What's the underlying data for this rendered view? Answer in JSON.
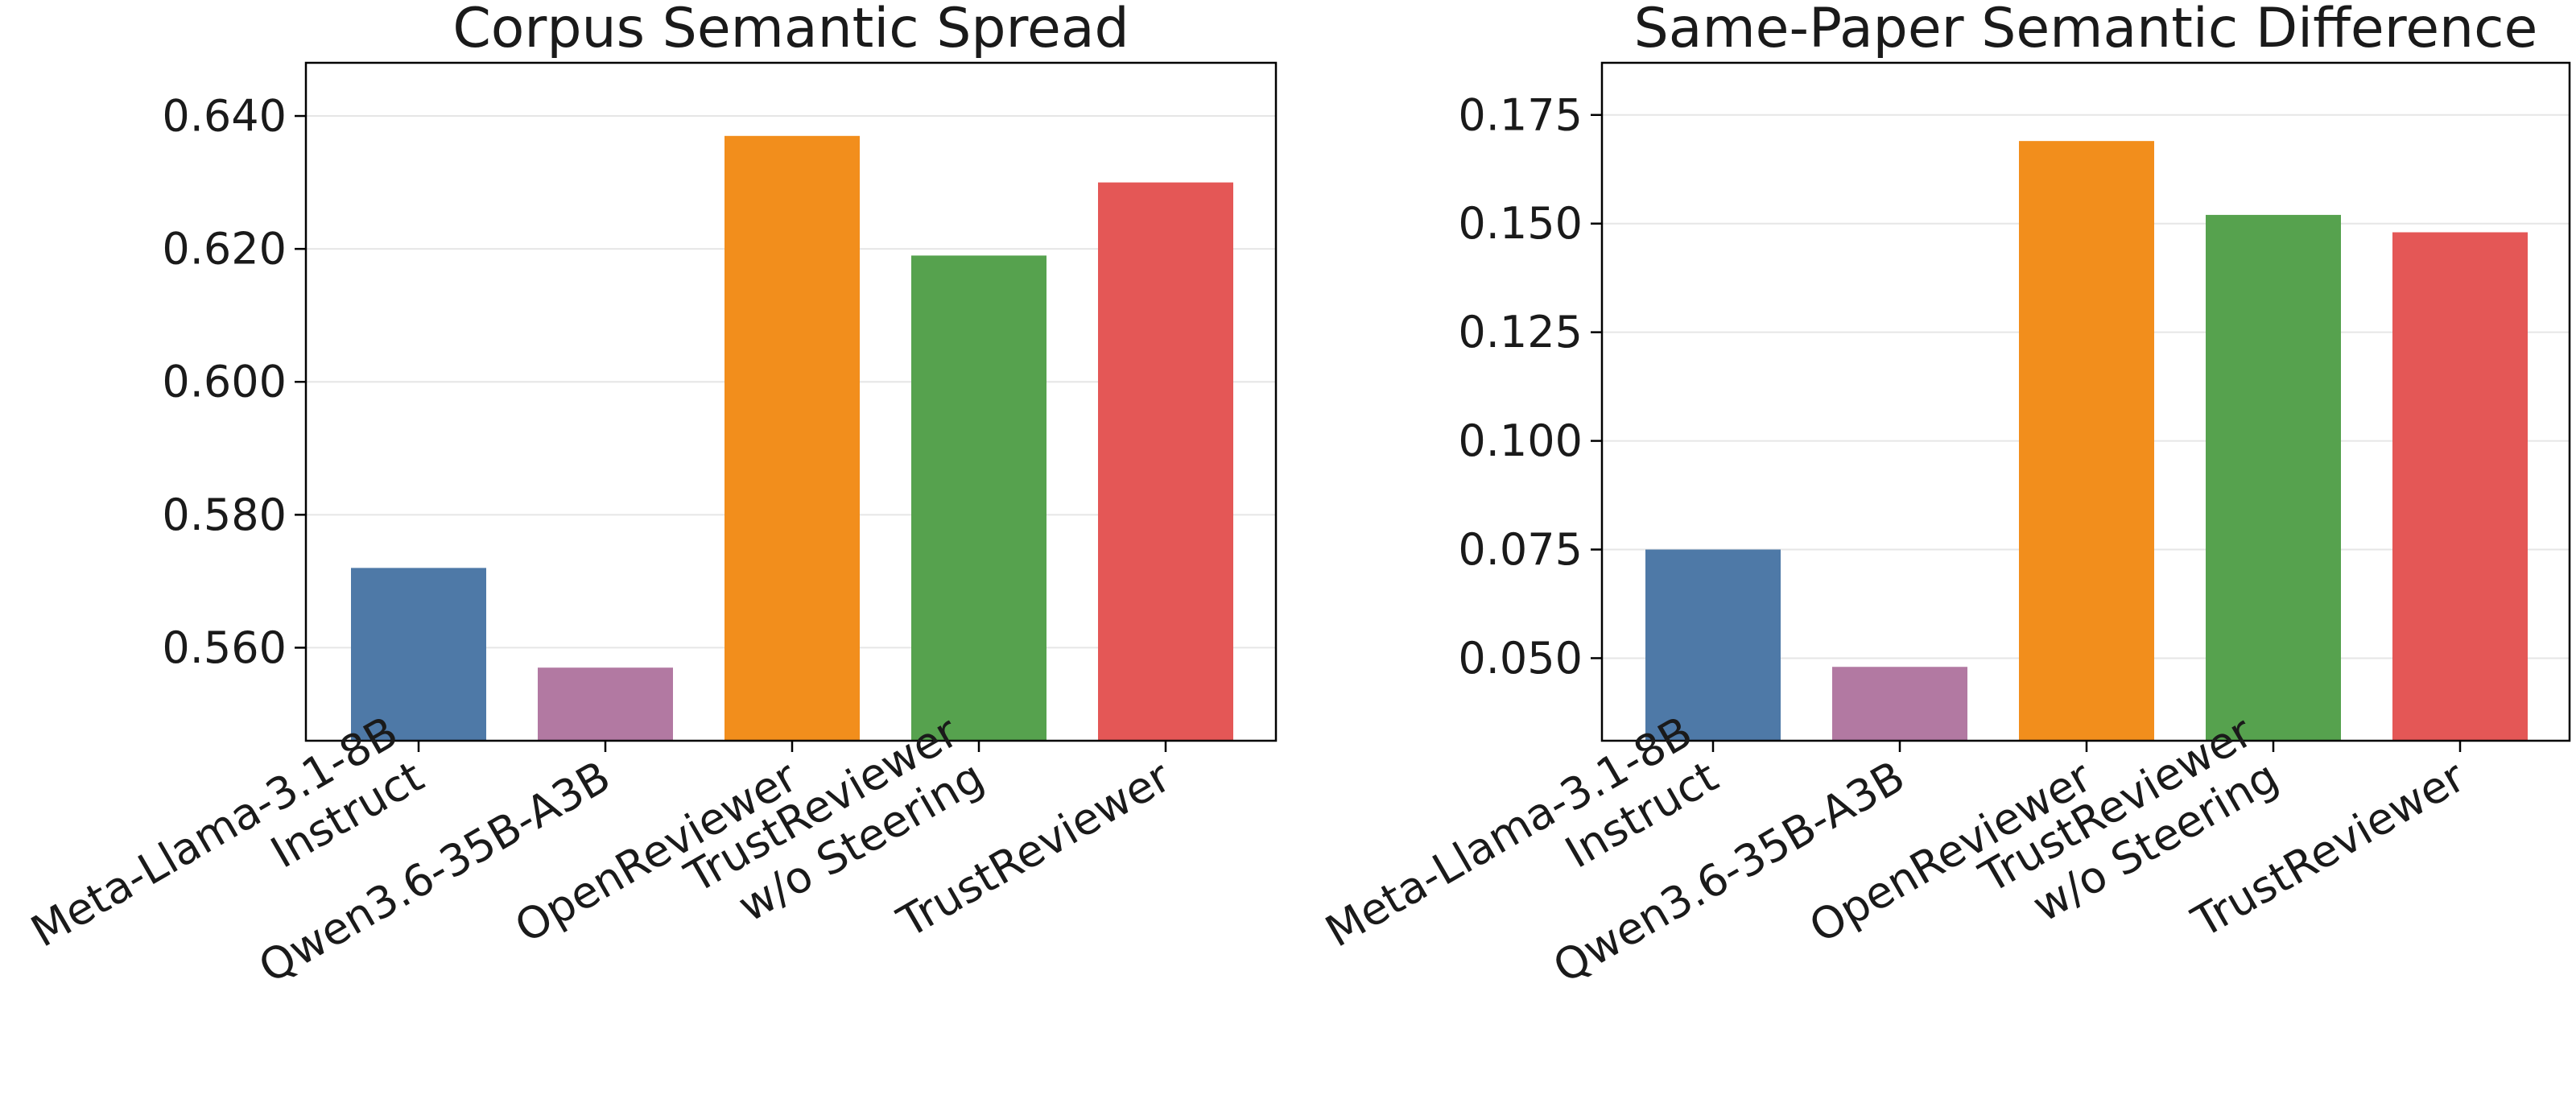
{
  "chart_data": [
    {
      "type": "bar",
      "title": "Corpus Semantic Spread",
      "categories": [
        [
          "Meta-Llama-3.1-8B",
          "Instruct"
        ],
        [
          "Qwen3.6-35B-A3B"
        ],
        [
          "OpenReviewer"
        ],
        [
          "TrustReviewer",
          "w/o Steering"
        ],
        [
          "TrustReviewer"
        ]
      ],
      "values": [
        0.572,
        0.557,
        0.637,
        0.619,
        0.63
      ],
      "colors": [
        "#4e79a7",
        "#b279a2",
        "#f28e1c",
        "#56a24e",
        "#e45756"
      ],
      "ylim": [
        0.546,
        0.648
      ],
      "yticks": [
        0.56,
        0.58,
        0.6,
        0.62,
        0.64
      ],
      "ytick_labels": [
        "0.560",
        "0.580",
        "0.600",
        "0.620",
        "0.640"
      ],
      "xlabel": "",
      "ylabel": "",
      "grid": "horizontal"
    },
    {
      "type": "bar",
      "title": "Same-Paper Semantic Difference",
      "categories": [
        [
          "Meta-Llama-3.1-8B",
          "Instruct"
        ],
        [
          "Qwen3.6-35B-A3B"
        ],
        [
          "OpenReviewer"
        ],
        [
          "TrustReviewer",
          "w/o Steering"
        ],
        [
          "TrustReviewer"
        ]
      ],
      "values": [
        0.075,
        0.048,
        0.169,
        0.152,
        0.148
      ],
      "colors": [
        "#4e79a7",
        "#b279a2",
        "#f28e1c",
        "#56a24e",
        "#e45756"
      ],
      "ylim": [
        0.031,
        0.187
      ],
      "yticks": [
        0.05,
        0.075,
        0.1,
        0.125,
        0.15,
        0.175
      ],
      "ytick_labels": [
        "0.050",
        "0.075",
        "0.100",
        "0.125",
        "0.150",
        "0.175"
      ],
      "xlabel": "",
      "ylabel": "",
      "grid": "horizontal"
    }
  ]
}
